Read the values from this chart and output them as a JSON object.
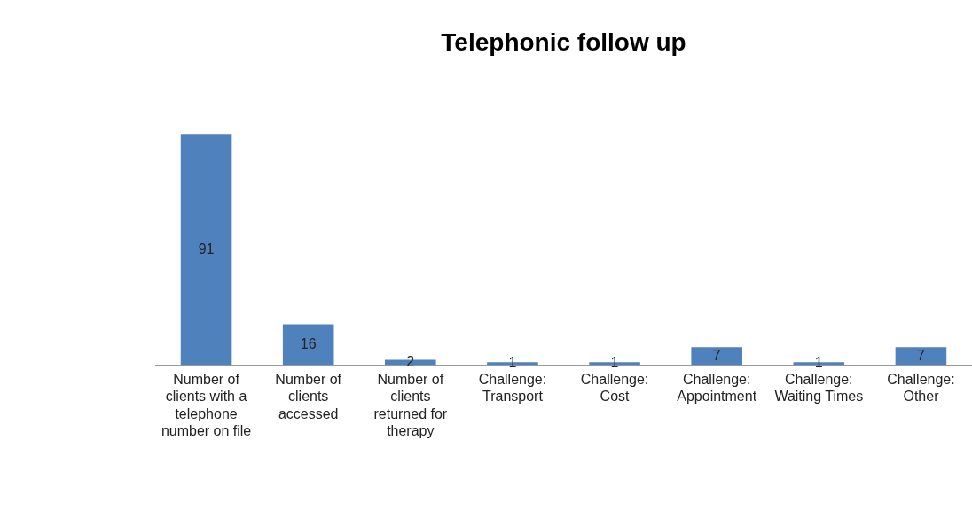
{
  "chart_data": {
    "type": "bar",
    "title": "Telephonic follow up",
    "categories": [
      "Number of clients with a telephone number on file",
      "Number of clients accessed",
      "Number of clients returned for therapy",
      "Challenge: Transport",
      "Challenge: Cost",
      "Challenge: Appointment",
      "Challenge: Waiting Times",
      "Challenge: Other"
    ],
    "values": [
      91,
      16,
      2,
      1,
      1,
      7,
      1,
      7
    ],
    "color": "#4f81bd",
    "data_labels": true,
    "grid": false,
    "legend": false
  }
}
